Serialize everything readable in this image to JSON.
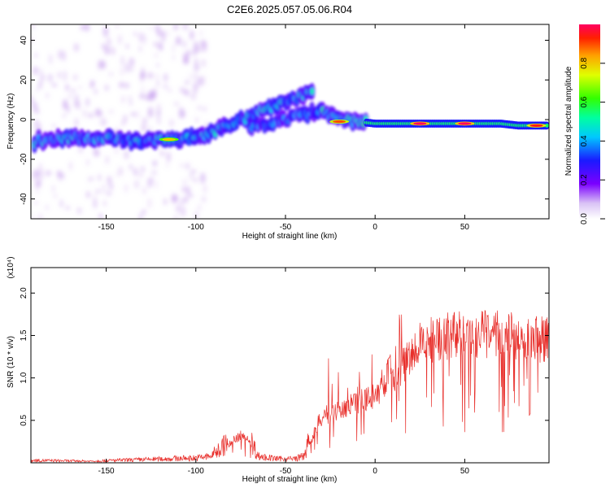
{
  "title": "C2E6.2025.057.05.06.R04",
  "colors": {
    "snr_line": "#e8302c",
    "spectrum_core": "#6a00e0",
    "axis": "#000000"
  },
  "chart_data": [
    {
      "type": "heatmap",
      "xlabel": "Height of straight line (km)",
      "ylabel": "Frequency (Hz)",
      "xlim": [
        -192,
        97
      ],
      "ylim": [
        -50,
        48
      ],
      "x_ticks": [
        -150,
        -100,
        -50,
        0,
        50
      ],
      "y_ticks": [
        -40,
        -20,
        0,
        20,
        40
      ],
      "colorbar": {
        "label": "Normalized spectral amplitude",
        "range": [
          0,
          1
        ],
        "ticks": [
          "0.0",
          "0.2",
          "0.4",
          "0.6",
          "0.8"
        ],
        "colormap": "rainbow (white-purple-blue-cyan-green-yellow-orange-red)"
      },
      "series": [
        {
          "x": [
            -190,
            -175,
            -160,
            -145,
            -130,
            -115,
            -100,
            -90,
            -80,
            -70,
            -60,
            -50,
            -40,
            -35
          ],
          "y": [
            -11,
            -10,
            -9,
            -10,
            -11,
            -10,
            -9,
            -6,
            -2,
            2,
            6,
            9,
            12,
            15
          ]
        },
        {
          "x": [
            -70,
            -60,
            -50,
            -40,
            -30,
            -20,
            -10,
            0,
            10,
            30,
            50,
            70,
            80,
            95
          ],
          "y": [
            -3,
            -2,
            0,
            3,
            4,
            0,
            -1,
            -2,
            -2,
            -2,
            -2,
            -2,
            -3,
            -3
          ]
        }
      ],
      "intensity_peaks": [
        {
          "x": -115,
          "y": -10,
          "amplitude": 0.8
        },
        {
          "x": -20,
          "y": -1,
          "amplitude": 0.9
        },
        {
          "x": 25,
          "y": -2,
          "amplitude": 1.0
        },
        {
          "x": 50,
          "y": -2,
          "amplitude": 1.0
        },
        {
          "x": 90,
          "y": -3,
          "amplitude": 0.95
        }
      ]
    },
    {
      "type": "line",
      "xlabel": "Height of straight line (km)",
      "ylabel": "SNR (10 * v/v)",
      "y_scale_label": "(x10⁴)",
      "xlim": [
        -192,
        97
      ],
      "ylim": [
        0.0,
        2.3
      ],
      "x_ticks": [
        -150,
        -100,
        -50,
        0,
        50
      ],
      "y_ticks": [
        "0.5",
        "1.0",
        "1.5",
        "2.0"
      ],
      "series": [
        {
          "x": [
            -190,
            -160,
            -130,
            -100,
            -92,
            -85,
            -80,
            -75,
            -70,
            -65,
            -55,
            -45,
            -40,
            -36,
            -32,
            -28,
            -25,
            -20,
            -15,
            -10,
            -5,
            0,
            5,
            8,
            10,
            15,
            20,
            25,
            30,
            40,
            50,
            60,
            70,
            80,
            90,
            95
          ],
          "y": [
            0.03,
            0.02,
            0.04,
            0.06,
            0.08,
            0.2,
            0.3,
            0.38,
            0.3,
            0.08,
            0.05,
            0.05,
            0.08,
            0.3,
            0.55,
            0.7,
            0.65,
            0.75,
            0.8,
            0.85,
            0.9,
            0.95,
            1.1,
            1.35,
            1.2,
            1.35,
            1.5,
            1.65,
            1.72,
            1.78,
            1.8,
            1.8,
            1.8,
            1.78,
            1.75,
            1.72
          ]
        }
      ]
    }
  ]
}
